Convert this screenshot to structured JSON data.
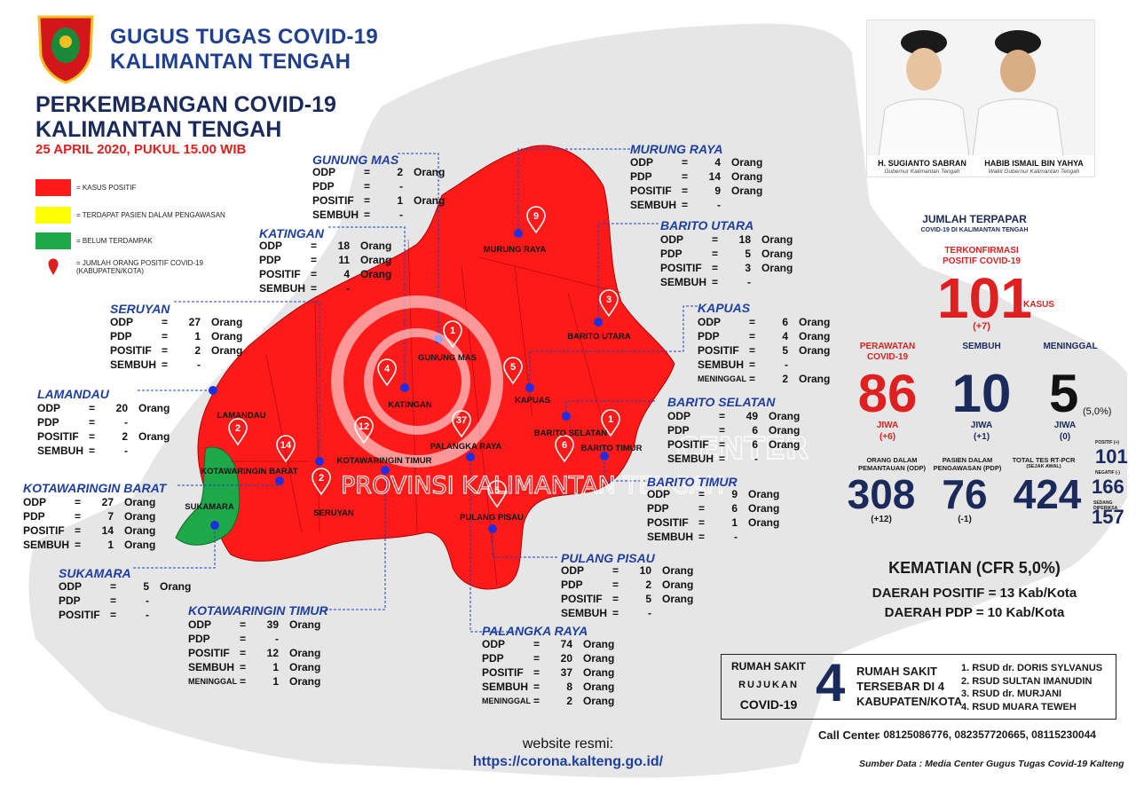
{
  "header": {
    "org_line1": "GUGUS TUGAS COVID-19",
    "org_line2": "KALIMANTAN TENGAH",
    "title_line1": "PERKEMBANGAN COVID-19",
    "title_line2": "KALIMANTAN TENGAH",
    "date": "25 APRIL 2020, PUKUL 15.00 WIB"
  },
  "legend": [
    {
      "text": "= KASUS POSITIF",
      "color": "#ff1a1a"
    },
    {
      "text": "= TERDAPAT PASIEN DALAM PENGAWASAN",
      "color": "#ffff00"
    },
    {
      "text": "= BELUM TERDAMPAK",
      "color": "#1fa84a"
    },
    {
      "text_line1": "= JUMLAH ORANG POSITIF COVID-19",
      "text_line2": "(KABUPATEN/KOTA)",
      "icon": "map-pin-icon"
    }
  ],
  "regions": [
    {
      "id": "gunung-mas",
      "name": "GUNUNG MAS",
      "map_label": "GUNUNG MAS",
      "positive": "1",
      "rows": [
        {
          "key": "ODP",
          "value": "2",
          "unit": "Orang"
        },
        {
          "key": "PDP",
          "value": "-",
          "unit": ""
        },
        {
          "key": "POSITIF",
          "value": "1",
          "unit": "Orang"
        },
        {
          "key": "SEMBUH",
          "value": "-",
          "unit": ""
        }
      ]
    },
    {
      "id": "katingan",
      "name": "KATINGAN",
      "map_label": "KATINGAN",
      "positive": "4",
      "rows": [
        {
          "key": "ODP",
          "value": "18",
          "unit": "Orang"
        },
        {
          "key": "PDP",
          "value": "11",
          "unit": "Orang"
        },
        {
          "key": "POSITIF",
          "value": "4",
          "unit": "Orang"
        },
        {
          "key": "SEMBUH",
          "value": "-",
          "unit": ""
        }
      ]
    },
    {
      "id": "seruyan",
      "name": "SERUYAN",
      "map_label": "SERUYAN",
      "positive": "2",
      "rows": [
        {
          "key": "ODP",
          "value": "27",
          "unit": "Orang"
        },
        {
          "key": "PDP",
          "value": "1",
          "unit": "Orang"
        },
        {
          "key": "POSITIF",
          "value": "2",
          "unit": "Orang"
        },
        {
          "key": "SEMBUH",
          "value": "-",
          "unit": ""
        }
      ]
    },
    {
      "id": "lamandau",
      "name": "LAMANDAU",
      "map_label": "LAMANDAU",
      "positive": "2",
      "rows": [
        {
          "key": "ODP",
          "value": "20",
          "unit": "Orang"
        },
        {
          "key": "PDP",
          "value": "-",
          "unit": ""
        },
        {
          "key": "POSITIF",
          "value": "2",
          "unit": "Orang"
        },
        {
          "key": "SEMBUH",
          "value": "-",
          "unit": ""
        }
      ]
    },
    {
      "id": "kotawaringin-barat",
      "name": "KOTAWARINGIN BARAT",
      "map_label": "KOTAWARINGIN BARAT",
      "positive": "14",
      "rows": [
        {
          "key": "ODP",
          "value": "27",
          "unit": "Orang"
        },
        {
          "key": "PDP",
          "value": "7",
          "unit": "Orang"
        },
        {
          "key": "POSITIF",
          "value": "14",
          "unit": "Orang"
        },
        {
          "key": "SEMBUH",
          "value": "1",
          "unit": "Orang"
        }
      ]
    },
    {
      "id": "sukamara",
      "name": "SUKAMARA",
      "map_label": "SUKAMARA",
      "positive": "",
      "rows": [
        {
          "key": "ODP",
          "value": "5",
          "unit": "Orang"
        },
        {
          "key": "PDP",
          "value": "-",
          "unit": ""
        },
        {
          "key": "POSITIF",
          "value": "-",
          "unit": ""
        }
      ]
    },
    {
      "id": "kotawaringin-timur",
      "name": "KOTAWARINGIN TIMUR",
      "map_label": "KOTAWARINGIN TIMUR",
      "positive": "12",
      "rows": [
        {
          "key": "ODP",
          "value": "39",
          "unit": "Orang"
        },
        {
          "key": "PDP",
          "value": "-",
          "unit": ""
        },
        {
          "key": "POSITIF",
          "value": "12",
          "unit": "Orang"
        },
        {
          "key": "SEMBUH",
          "value": "1",
          "unit": "Orang"
        },
        {
          "key": "MENINGGAL",
          "value": "1",
          "unit": "Orang"
        }
      ]
    },
    {
      "id": "murung-raya",
      "name": "MURUNG RAYA",
      "map_label": "MURUNG RAYA",
      "positive": "9",
      "rows": [
        {
          "key": "ODP",
          "value": "4",
          "unit": "Orang"
        },
        {
          "key": "PDP",
          "value": "14",
          "unit": "Orang"
        },
        {
          "key": "POSITIF",
          "value": "9",
          "unit": "Orang"
        },
        {
          "key": "SEMBUH",
          "value": "-",
          "unit": ""
        }
      ]
    },
    {
      "id": "barito-utara",
      "name": "BARITO UTARA",
      "map_label": "BARITO UTARA",
      "positive": "3",
      "rows": [
        {
          "key": "ODP",
          "value": "18",
          "unit": "Orang"
        },
        {
          "key": "PDP",
          "value": "5",
          "unit": "Orang"
        },
        {
          "key": "POSITIF",
          "value": "3",
          "unit": "Orang"
        },
        {
          "key": "SEMBUH",
          "value": "-",
          "unit": ""
        }
      ]
    },
    {
      "id": "kapuas",
      "name": "KAPUAS",
      "map_label": "KAPUAS",
      "positive": "5",
      "rows": [
        {
          "key": "ODP",
          "value": "6",
          "unit": "Orang"
        },
        {
          "key": "PDP",
          "value": "4",
          "unit": "Orang"
        },
        {
          "key": "POSITIF",
          "value": "5",
          "unit": "Orang"
        },
        {
          "key": "SEMBUH",
          "value": "-",
          "unit": ""
        },
        {
          "key": "MENINGGAL",
          "value": "2",
          "unit": "Orang"
        }
      ]
    },
    {
      "id": "barito-selatan",
      "name": "BARITO SELATAN",
      "map_label": "BARITO SELATAN",
      "positive": "",
      "rows": [
        {
          "key": "ODP",
          "value": "49",
          "unit": "Orang"
        },
        {
          "key": "PDP",
          "value": "6",
          "unit": "Orang"
        },
        {
          "key": "POSITIF",
          "value": "6",
          "unit": "Orang"
        },
        {
          "key": "SEMBUH",
          "value": "-",
          "unit": ""
        }
      ]
    },
    {
      "id": "barito-timur",
      "name": "BARITO TIMUR",
      "map_label": "BARITO TIMUR",
      "positive": "1",
      "rows": [
        {
          "key": "ODP",
          "value": "9",
          "unit": "Orang"
        },
        {
          "key": "PDP",
          "value": "6",
          "unit": "Orang"
        },
        {
          "key": "POSITIF",
          "value": "1",
          "unit": "Orang"
        },
        {
          "key": "SEMBUH",
          "value": "-",
          "unit": ""
        }
      ]
    },
    {
      "id": "pulang-pisau",
      "name": "PULANG PISAU",
      "map_label": "PULANG PISAU",
      "positive": "5",
      "rows": [
        {
          "key": "ODP",
          "value": "10",
          "unit": "Orang"
        },
        {
          "key": "PDP",
          "value": "2",
          "unit": "Orang"
        },
        {
          "key": "POSITIF",
          "value": "5",
          "unit": "Orang"
        },
        {
          "key": "SEMBUH",
          "value": "-",
          "unit": ""
        }
      ]
    },
    {
      "id": "palangka-raya",
      "name": "PALANGKA RAYA",
      "map_label": "PALANGKA RAYA",
      "positive": "37",
      "rows": [
        {
          "key": "ODP",
          "value": "74",
          "unit": "Orang"
        },
        {
          "key": "PDP",
          "value": "20",
          "unit": "Orang"
        },
        {
          "key": "POSITIF",
          "value": "37",
          "unit": "Orang"
        },
        {
          "key": "SEMBUH",
          "value": "8",
          "unit": "Orang"
        },
        {
          "key": "MENINGGAL",
          "value": "2",
          "unit": "Orang"
        }
      ]
    }
  ],
  "map_extra_pins": [
    "6"
  ],
  "officials": [
    {
      "name": "H. SUGIANTO SABRAN",
      "role": "Gubernur Kalimantan Tengah"
    },
    {
      "name": "HABIB ISMAIL BIN YAHYA",
      "role": "Wakil Gubernur Kalimantan Tengah"
    }
  ],
  "summary": {
    "title": "JUMLAH TERPAPAR",
    "subtitle": "COVID-19 DI KALIMANTAN TENGAH",
    "confirmed_label_line1": "TERKONFIRMASI",
    "confirmed_label_line2": "POSITIF COVID-19",
    "confirmed": "101",
    "confirmed_unit": "KASUS",
    "confirmed_delta": "(+7)",
    "treated_label_line1": "PERAWATAN",
    "treated_label_line2": "COVID-19",
    "treated": "86",
    "treated_unit": "JIWA",
    "treated_delta": "(+6)",
    "recovered_label": "SEMBUH",
    "recovered": "10",
    "recovered_unit": "JIWA",
    "recovered_delta": "(+1)",
    "died_label": "MENINGGAL",
    "died": "5",
    "died_pct": "(5,0%)",
    "died_unit": "JIWA",
    "died_delta": "(0)",
    "odp_label_line1": "ORANG DALAM",
    "odp_label_line2": "PEMANTAUAN (ODP)",
    "odp": "308",
    "odp_delta": "(+12)",
    "pdp_label_line1": "PASIEN DALAM",
    "pdp_label_line2": "PENGAWASAN (PDP)",
    "pdp": "76",
    "pdp_delta": "(-1)",
    "test_label": "TOTAL TES RT-PCR",
    "test_sub": "(SEJAK AWAL)",
    "tests": "424",
    "test_positive_label": "POSITIF (+)",
    "test_positive": "101",
    "test_negative_label": "NEGATIF (-)",
    "test_negative": "166",
    "test_pending_label": "SEDANG DIPERIKSA",
    "test_pending": "157",
    "cfr": "KEMATIAN (CFR 5,0%)",
    "positive_areas": "DAERAH POSITIF = 13 Kab/Kota",
    "pdp_areas": "DAERAH PDP = 10 Kab/Kota"
  },
  "hospitals": {
    "label_line1": "RUMAH SAKIT",
    "label_line2": "RUJUKAN",
    "label_line3": "COVID-19",
    "count": "4",
    "desc_line1": "RUMAH SAKIT",
    "desc_line2": "TERSEBAR DI 4",
    "desc_line3": "KABUPATEN/KOTA",
    "list": [
      "1. RSUD dr. DORIS SYLVANUS",
      "2. RSUD SULTAN IMANUDIN",
      "3. RSUD dr. MURJANI",
      "4. RSUD MUARA TEWEH"
    ]
  },
  "footer": {
    "call_center_label": "Call Center",
    "call_center": ": 08125086776, 082357720665, 08115230044",
    "website_label": "website resmi:",
    "website": "https://corona.kalteng.go.id/",
    "source": "Sumber Data : Media Center Gugus Tugas Covid-19 Kalteng"
  },
  "watermark": {
    "text": "PROVINSI KALIMANTAN TENGAH",
    "center": "CENTER"
  },
  "colors": {
    "positive": "#ff1a1a",
    "pdp": "#ffff00",
    "untouched": "#1fa84a",
    "title_blue": "#1f3f9f",
    "navy": "#1a2a5a",
    "red_text": "#e02020"
  }
}
